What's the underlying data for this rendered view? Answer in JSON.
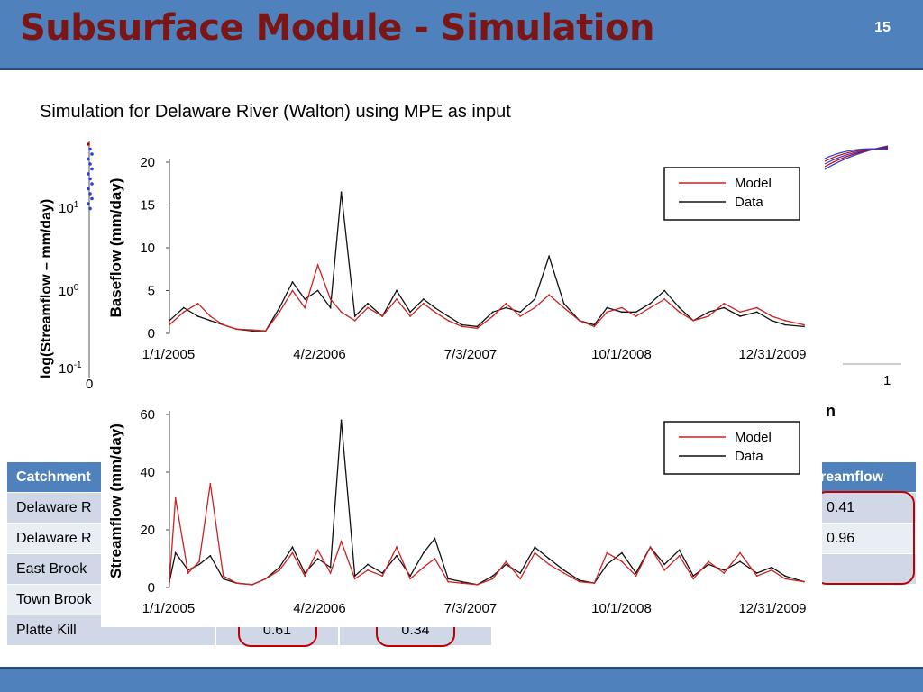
{
  "slide": {
    "title": "Subsurface Module - Simulation",
    "number": "15",
    "subtitle": "Simulation for Delaware River (Walton) using MPE as input"
  },
  "background": {
    "log_axis_label": "log(Streamflow – mm/day)",
    "log_ticks": [
      {
        "base": "10",
        "exp": "1"
      },
      {
        "base": "10",
        "exp": "0"
      },
      {
        "base": "10",
        "exp": "-1"
      }
    ],
    "x_start": "0",
    "x_end": "1",
    "partial_label": "n"
  },
  "table": {
    "header_left": "Catchment",
    "header_right": "reamflow",
    "rows": [
      {
        "name": "Delaware R",
        "right": "0.41"
      },
      {
        "name": "Delaware R",
        "right": "0.96"
      },
      {
        "name": "East Brook",
        "right": ""
      },
      {
        "name": "Town Brook",
        "right": ""
      },
      {
        "name": "Platte Kill",
        "right": ""
      }
    ],
    "platte_kill_values": [
      "0.61",
      "0.34"
    ],
    "colors": {
      "header": "#4f81bd",
      "odd": "#d0d8e8",
      "even": "#e9edf4",
      "highlight": "#c00000"
    }
  },
  "chart_data": [
    {
      "type": "line",
      "ylabel": "Baseflow (mm/day)",
      "xlabel": "",
      "ylim": [
        0,
        20
      ],
      "yticks": [
        0,
        5,
        10,
        15,
        20
      ],
      "xticks": [
        "1/1/2005",
        "4/2/2006",
        "7/3/2007",
        "10/1/2008",
        "12/31/2009"
      ],
      "x_range": [
        "2005-01-01",
        "2010-06-30"
      ],
      "legend_position": "top-right",
      "series": [
        {
          "name": "Model",
          "color": "#cc2222",
          "x": [
            "2005-01-01",
            "2005-02-15",
            "2005-04-01",
            "2005-05-10",
            "2005-06-20",
            "2005-08-01",
            "2005-09-20",
            "2005-11-01",
            "2005-12-15",
            "2006-01-25",
            "2006-03-05",
            "2006-04-15",
            "2006-05-25",
            "2006-06-28",
            "2006-08-10",
            "2006-09-20",
            "2006-11-05",
            "2006-12-20",
            "2007-02-01",
            "2007-03-15",
            "2007-04-20",
            "2007-06-01",
            "2007-07-15",
            "2007-09-01",
            "2007-10-20",
            "2007-12-01",
            "2008-01-15",
            "2008-03-01",
            "2008-04-15",
            "2008-06-01",
            "2008-07-20",
            "2008-09-05",
            "2008-10-15",
            "2008-12-01",
            "2009-01-15",
            "2009-03-01",
            "2009-04-15",
            "2009-06-01",
            "2009-07-15",
            "2009-09-01",
            "2009-10-20",
            "2009-12-10",
            "2010-02-01",
            "2010-03-20",
            "2010-05-01",
            "2010-06-30"
          ],
          "y": [
            1.0,
            2.5,
            3.5,
            2.0,
            1.0,
            0.5,
            0.4,
            0.3,
            2.5,
            5.0,
            3.0,
            8.0,
            4.0,
            2.5,
            1.5,
            3.0,
            2.0,
            4.0,
            2.0,
            3.5,
            2.5,
            1.5,
            0.8,
            0.6,
            2.0,
            3.5,
            2.0,
            3.0,
            4.5,
            3.0,
            1.5,
            0.8,
            2.5,
            3.0,
            2.0,
            3.0,
            4.0,
            2.5,
            1.5,
            2.0,
            3.5,
            2.5,
            3.0,
            2.0,
            1.5,
            1.0
          ]
        },
        {
          "name": "Data",
          "color": "#111111",
          "x": [
            "2005-01-01",
            "2005-02-15",
            "2005-04-01",
            "2005-05-10",
            "2005-06-20",
            "2005-08-01",
            "2005-09-20",
            "2005-11-01",
            "2005-12-15",
            "2006-01-25",
            "2006-03-05",
            "2006-04-15",
            "2006-05-25",
            "2006-06-28",
            "2006-08-10",
            "2006-09-20",
            "2006-11-05",
            "2006-12-20",
            "2007-02-01",
            "2007-03-15",
            "2007-04-20",
            "2007-06-01",
            "2007-07-15",
            "2007-09-01",
            "2007-10-20",
            "2007-12-01",
            "2008-01-15",
            "2008-03-01",
            "2008-04-15",
            "2008-06-01",
            "2008-07-20",
            "2008-09-05",
            "2008-10-15",
            "2008-12-01",
            "2009-01-15",
            "2009-03-01",
            "2009-04-15",
            "2009-06-01",
            "2009-07-15",
            "2009-09-01",
            "2009-10-20",
            "2009-12-10",
            "2010-02-01",
            "2010-03-20",
            "2010-05-01",
            "2010-06-30"
          ],
          "y": [
            1.5,
            3.0,
            2.0,
            1.5,
            1.0,
            0.5,
            0.3,
            0.3,
            3.0,
            6.0,
            4.0,
            5.0,
            3.0,
            16.5,
            2.0,
            3.5,
            2.0,
            5.0,
            2.5,
            4.0,
            3.0,
            2.0,
            1.0,
            0.8,
            2.5,
            3.0,
            2.5,
            4.0,
            9.0,
            3.5,
            1.5,
            1.0,
            3.0,
            2.5,
            2.5,
            3.5,
            5.0,
            3.0,
            1.5,
            2.5,
            3.0,
            2.0,
            2.5,
            1.5,
            1.0,
            0.8
          ]
        }
      ]
    },
    {
      "type": "line",
      "ylabel": "Streamflow (mm/day)",
      "xlabel": "",
      "ylim": [
        0,
        60
      ],
      "yticks": [
        0,
        20,
        40,
        60
      ],
      "xticks": [
        "1/1/2005",
        "4/2/2006",
        "7/3/2007",
        "10/1/2008",
        "12/31/2009"
      ],
      "x_range": [
        "2005-01-01",
        "2010-06-30"
      ],
      "legend_position": "top-right",
      "series": [
        {
          "name": "Model",
          "color": "#cc2222",
          "x": [
            "2005-01-01",
            "2005-01-20",
            "2005-03-01",
            "2005-04-05",
            "2005-05-10",
            "2005-06-20",
            "2005-08-01",
            "2005-09-20",
            "2005-11-01",
            "2005-12-15",
            "2006-01-25",
            "2006-03-05",
            "2006-04-15",
            "2006-05-25",
            "2006-06-28",
            "2006-08-10",
            "2006-09-20",
            "2006-11-05",
            "2006-12-20",
            "2007-02-01",
            "2007-03-15",
            "2007-04-20",
            "2007-06-01",
            "2007-07-15",
            "2007-09-01",
            "2007-10-20",
            "2007-12-01",
            "2008-01-15",
            "2008-03-01",
            "2008-04-15",
            "2008-06-01",
            "2008-07-20",
            "2008-09-05",
            "2008-10-15",
            "2008-12-01",
            "2009-01-15",
            "2009-03-01",
            "2009-04-15",
            "2009-06-01",
            "2009-07-15",
            "2009-09-01",
            "2009-10-20",
            "2009-12-10",
            "2010-02-01",
            "2010-03-20",
            "2010-05-01",
            "2010-06-30"
          ],
          "y": [
            2.0,
            31.0,
            5.0,
            9.0,
            36.0,
            4.0,
            1.5,
            1.0,
            3.0,
            6.0,
            12.0,
            4.0,
            13.0,
            5.0,
            16.0,
            3.0,
            6.0,
            4.0,
            14.0,
            3.0,
            7.0,
            10.0,
            2.0,
            1.5,
            1.0,
            3.0,
            9.0,
            3.0,
            12.0,
            8.0,
            5.0,
            2.0,
            1.5,
            12.0,
            9.0,
            4.0,
            14.0,
            6.0,
            11.0,
            3.0,
            9.0,
            5.0,
            12.0,
            4.0,
            6.0,
            3.0,
            2.0
          ]
        },
        {
          "name": "Data",
          "color": "#111111",
          "x": [
            "2005-01-01",
            "2005-01-20",
            "2005-03-01",
            "2005-04-05",
            "2005-05-10",
            "2005-06-20",
            "2005-08-01",
            "2005-09-20",
            "2005-11-01",
            "2005-12-15",
            "2006-01-25",
            "2006-03-05",
            "2006-04-15",
            "2006-05-25",
            "2006-06-28",
            "2006-08-10",
            "2006-09-20",
            "2006-11-05",
            "2006-12-20",
            "2007-02-01",
            "2007-03-15",
            "2007-04-20",
            "2007-06-01",
            "2007-07-15",
            "2007-09-01",
            "2007-10-20",
            "2007-12-01",
            "2008-01-15",
            "2008-03-01",
            "2008-04-15",
            "2008-06-01",
            "2008-07-20",
            "2008-09-05",
            "2008-10-15",
            "2008-12-01",
            "2009-01-15",
            "2009-03-01",
            "2009-04-15",
            "2009-06-01",
            "2009-07-15",
            "2009-09-01",
            "2009-10-20",
            "2009-12-10",
            "2010-02-01",
            "2010-03-20",
            "2010-05-01",
            "2010-06-30"
          ],
          "y": [
            2.0,
            12.0,
            6.0,
            8.0,
            11.0,
            3.0,
            1.5,
            1.0,
            3.0,
            7.0,
            14.0,
            5.0,
            10.0,
            7.0,
            58.0,
            4.0,
            8.0,
            5.0,
            11.0,
            4.0,
            12.0,
            17.0,
            3.0,
            2.0,
            1.0,
            4.0,
            8.0,
            5.0,
            14.0,
            10.0,
            6.0,
            2.5,
            1.5,
            8.0,
            12.0,
            5.0,
            14.0,
            8.0,
            13.0,
            4.0,
            8.0,
            6.0,
            9.0,
            5.0,
            7.0,
            4.0,
            2.0
          ]
        }
      ]
    }
  ]
}
